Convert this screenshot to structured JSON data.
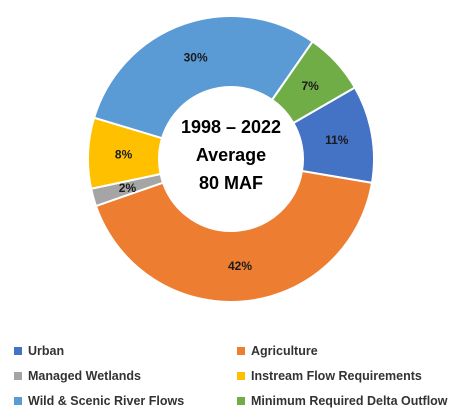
{
  "chart_data": {
    "type": "pie",
    "style": "donut",
    "center_title": [
      "1998 – 2022",
      "Average",
      "80 MAF"
    ],
    "categories": [
      "Urban",
      "Agriculture",
      "Managed Wetlands",
      "Instream Flow Requirements",
      "Wild & Scenic River Flows",
      "Minimum Required Delta Outflow"
    ],
    "values": [
      11,
      42,
      2,
      8,
      30,
      7
    ],
    "labels": [
      "11%",
      "42%",
      "2%",
      "8%",
      "30%",
      "7%"
    ],
    "colors": [
      "#4472C4",
      "#ED7D31",
      "#A5A5A5",
      "#FFC000",
      "#5B9BD5",
      "#70AD47"
    ],
    "legend_position": "bottom"
  },
  "legend": {
    "items": [
      {
        "label": "Urban",
        "color": "#4472C4"
      },
      {
        "label": "Agriculture",
        "color": "#ED7D31"
      },
      {
        "label": "Managed Wetlands",
        "color": "#A5A5A5"
      },
      {
        "label": "Instream Flow Requirements",
        "color": "#FFC000"
      },
      {
        "label": "Wild & Scenic River Flows",
        "color": "#5B9BD5"
      },
      {
        "label": "Minimum Required Delta Outflow",
        "color": "#70AD47"
      }
    ]
  }
}
